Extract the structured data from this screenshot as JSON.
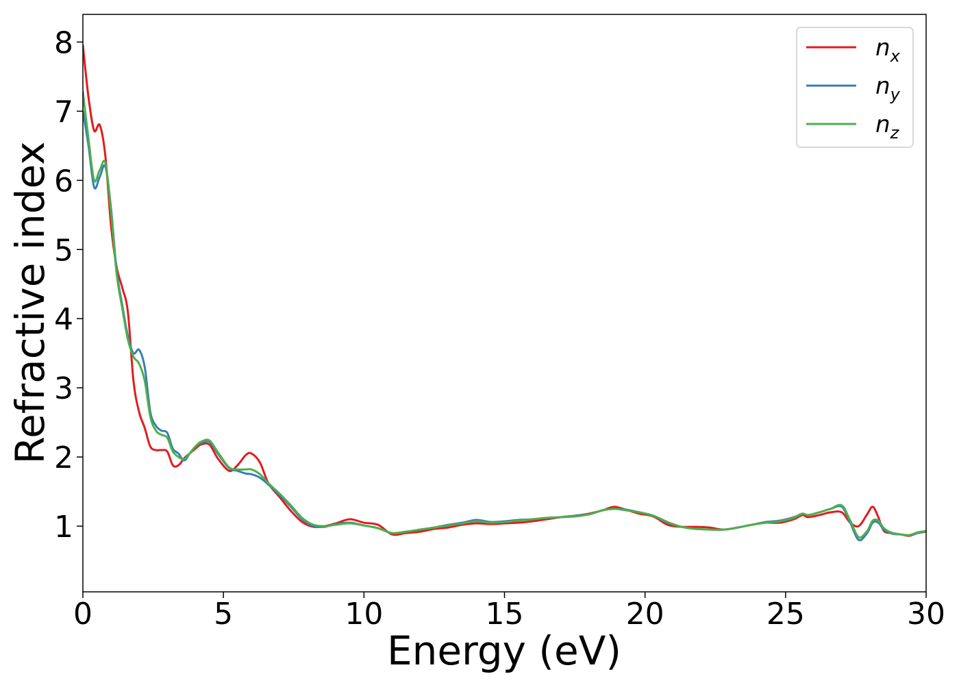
{
  "chart_data": {
    "type": "line",
    "xlabel": "Energy (eV)",
    "ylabel": "Refractive index",
    "xlim": [
      0,
      30
    ],
    "ylim": [
      0.05,
      8.4
    ],
    "xticks": [
      0,
      5,
      10,
      15,
      20,
      25,
      30
    ],
    "yticks": [
      1,
      2,
      3,
      4,
      5,
      6,
      7,
      8
    ],
    "grid": false,
    "legend_position": "top-right",
    "series": [
      {
        "name": "n",
        "sub": "x",
        "color": "#e41a1c",
        "x": [
          0,
          0.2,
          0.4,
          0.6,
          0.8,
          1.0,
          1.2,
          1.4,
          1.6,
          1.8,
          2.0,
          2.2,
          2.4,
          2.6,
          2.8,
          3.0,
          3.2,
          3.4,
          3.6,
          3.8,
          4.0,
          4.2,
          4.5,
          4.8,
          5.2,
          5.5,
          5.8,
          6.0,
          6.3,
          6.6,
          7.0,
          7.4,
          7.8,
          8.2,
          8.6,
          9.0,
          9.5,
          10.0,
          10.5,
          11.0,
          11.5,
          12.0,
          12.5,
          13.0,
          13.5,
          14.0,
          14.5,
          15.0,
          15.5,
          16.0,
          16.5,
          17.0,
          17.5,
          18.0,
          18.5,
          18.9,
          19.3,
          19.8,
          20.3,
          20.8,
          21.3,
          21.8,
          22.3,
          22.8,
          23.3,
          23.8,
          24.3,
          24.8,
          25.3,
          25.6,
          25.8,
          26.2,
          26.6,
          27.0,
          27.3,
          27.6,
          27.9,
          28.1,
          28.3,
          28.5,
          28.8,
          29.1,
          29.4,
          29.7,
          30.0
        ],
        "values": [
          7.95,
          7.2,
          6.72,
          6.8,
          6.35,
          5.35,
          4.75,
          4.45,
          4.1,
          3.1,
          2.65,
          2.42,
          2.15,
          2.1,
          2.1,
          2.08,
          1.88,
          1.88,
          1.98,
          2.05,
          2.12,
          2.18,
          2.18,
          1.98,
          1.8,
          1.88,
          2.03,
          2.05,
          1.92,
          1.62,
          1.42,
          1.22,
          1.06,
          0.99,
          1.0,
          1.04,
          1.1,
          1.05,
          1.02,
          0.88,
          0.9,
          0.92,
          0.96,
          0.98,
          1.02,
          1.04,
          1.03,
          1.04,
          1.05,
          1.07,
          1.1,
          1.13,
          1.15,
          1.18,
          1.23,
          1.28,
          1.24,
          1.18,
          1.14,
          1.02,
          0.99,
          0.99,
          0.98,
          0.95,
          0.98,
          1.02,
          1.05,
          1.05,
          1.1,
          1.16,
          1.13,
          1.16,
          1.2,
          1.2,
          1.05,
          1.0,
          1.17,
          1.28,
          1.13,
          0.93,
          0.9,
          0.88,
          0.86,
          0.9,
          0.92
        ]
      },
      {
        "name": "n",
        "sub": "y",
        "color": "#377eb8",
        "x": [
          0,
          0.2,
          0.4,
          0.6,
          0.8,
          1.0,
          1.2,
          1.4,
          1.6,
          1.8,
          2.0,
          2.2,
          2.4,
          2.6,
          2.8,
          3.0,
          3.2,
          3.4,
          3.6,
          3.8,
          4.0,
          4.2,
          4.5,
          4.8,
          5.2,
          5.5,
          5.8,
          6.0,
          6.3,
          6.6,
          7.0,
          7.4,
          7.8,
          8.2,
          8.6,
          9.0,
          9.5,
          10.0,
          10.5,
          11.0,
          11.5,
          12.0,
          12.5,
          13.0,
          13.5,
          14.0,
          14.5,
          15.0,
          15.5,
          16.0,
          16.5,
          17.0,
          17.5,
          18.0,
          18.5,
          18.9,
          19.3,
          19.8,
          20.3,
          20.8,
          21.3,
          21.8,
          22.3,
          22.8,
          23.3,
          23.8,
          24.3,
          24.8,
          25.3,
          25.6,
          25.8,
          26.2,
          26.6,
          27.0,
          27.3,
          27.6,
          27.9,
          28.1,
          28.3,
          28.5,
          28.8,
          29.1,
          29.4,
          29.7,
          30.0
        ],
        "values": [
          7.0,
          6.5,
          5.9,
          6.05,
          6.2,
          5.6,
          4.7,
          4.2,
          3.75,
          3.5,
          3.55,
          3.3,
          2.65,
          2.45,
          2.38,
          2.35,
          2.12,
          2.05,
          1.95,
          2.05,
          2.15,
          2.2,
          2.22,
          2.05,
          1.84,
          1.8,
          1.76,
          1.75,
          1.7,
          1.6,
          1.45,
          1.28,
          1.1,
          1.0,
          0.99,
          1.03,
          1.05,
          1.01,
          0.97,
          0.9,
          0.92,
          0.95,
          0.98,
          1.02,
          1.05,
          1.09,
          1.06,
          1.07,
          1.09,
          1.1,
          1.12,
          1.13,
          1.15,
          1.17,
          1.23,
          1.25,
          1.24,
          1.2,
          1.15,
          1.05,
          0.99,
          0.96,
          0.95,
          0.95,
          0.98,
          1.02,
          1.06,
          1.08,
          1.13,
          1.18,
          1.16,
          1.2,
          1.25,
          1.28,
          1.05,
          0.8,
          0.9,
          1.05,
          1.05,
          0.95,
          0.89,
          0.88,
          0.87,
          0.9,
          0.93
        ]
      },
      {
        "name": "n",
        "sub": "z",
        "color": "#4daf4a",
        "x": [
          0,
          0.2,
          0.4,
          0.6,
          0.8,
          1.0,
          1.2,
          1.4,
          1.6,
          1.8,
          2.0,
          2.2,
          2.4,
          2.6,
          2.8,
          3.0,
          3.2,
          3.4,
          3.6,
          3.8,
          4.0,
          4.2,
          4.5,
          4.8,
          5.2,
          5.5,
          5.8,
          6.0,
          6.3,
          6.6,
          7.0,
          7.4,
          7.8,
          8.2,
          8.6,
          9.0,
          9.5,
          10.0,
          10.5,
          11.0,
          11.5,
          12.0,
          12.5,
          13.0,
          13.5,
          14.0,
          14.5,
          15.0,
          15.5,
          16.0,
          16.5,
          17.0,
          17.5,
          18.0,
          18.5,
          18.9,
          19.3,
          19.8,
          20.3,
          20.8,
          21.3,
          21.8,
          22.3,
          22.8,
          23.3,
          23.8,
          24.3,
          24.8,
          25.3,
          25.6,
          25.8,
          26.2,
          26.6,
          27.0,
          27.3,
          27.6,
          27.9,
          28.1,
          28.3,
          28.5,
          28.8,
          29.1,
          29.4,
          29.7,
          30.0
        ],
        "values": [
          7.28,
          6.6,
          6.0,
          6.15,
          6.25,
          5.55,
          4.65,
          4.15,
          3.7,
          3.45,
          3.35,
          3.1,
          2.58,
          2.38,
          2.32,
          2.28,
          2.08,
          2.0,
          1.97,
          2.05,
          2.15,
          2.22,
          2.24,
          2.07,
          1.85,
          1.82,
          1.82,
          1.82,
          1.75,
          1.62,
          1.47,
          1.3,
          1.12,
          1.02,
          1.0,
          1.02,
          1.04,
          1.01,
          0.97,
          0.9,
          0.92,
          0.95,
          0.98,
          1.01,
          1.04,
          1.07,
          1.05,
          1.06,
          1.08,
          1.1,
          1.12,
          1.13,
          1.14,
          1.17,
          1.23,
          1.25,
          1.23,
          1.2,
          1.15,
          1.06,
          0.99,
          0.96,
          0.95,
          0.95,
          0.98,
          1.02,
          1.05,
          1.07,
          1.12,
          1.18,
          1.16,
          1.2,
          1.25,
          1.3,
          1.08,
          0.84,
          0.93,
          1.08,
          1.08,
          0.97,
          0.9,
          0.88,
          0.87,
          0.91,
          0.93
        ]
      }
    ]
  }
}
